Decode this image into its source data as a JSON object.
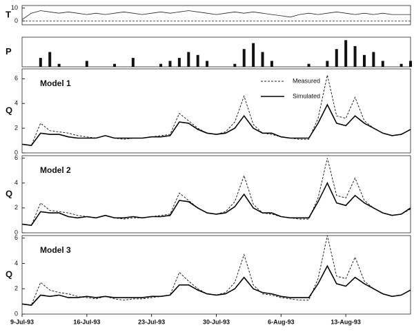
{
  "chart_data": [
    {
      "type": "line",
      "ylabel": "T",
      "x": [
        "1993-07-09",
        "1993-07-10",
        "1993-07-11",
        "1993-07-12",
        "1993-07-13",
        "1993-07-14",
        "1993-07-15",
        "1993-07-16",
        "1993-07-17",
        "1993-07-18",
        "1993-07-19",
        "1993-07-20",
        "1993-07-21",
        "1993-07-22",
        "1993-07-23",
        "1993-07-24",
        "1993-07-25",
        "1993-07-26",
        "1993-07-27",
        "1993-07-28",
        "1993-07-29",
        "1993-07-30",
        "1993-07-31",
        "1993-08-01",
        "1993-08-02",
        "1993-08-03",
        "1993-08-04",
        "1993-08-05",
        "1993-08-06",
        "1993-08-07",
        "1993-08-08",
        "1993-08-09",
        "1993-08-10",
        "1993-08-11",
        "1993-08-12",
        "1993-08-13",
        "1993-08-14",
        "1993-08-15",
        "1993-08-16",
        "1993-08-17",
        "1993-08-18",
        "1993-08-19",
        "1993-08-20"
      ],
      "values": [
        1,
        6,
        8,
        7,
        6,
        7,
        6,
        5,
        6,
        5,
        6,
        7,
        6,
        5,
        6,
        7,
        6,
        7,
        8,
        7,
        6,
        5,
        6,
        7,
        6,
        7,
        6,
        5,
        4,
        3,
        5,
        6,
        5,
        6,
        7,
        6,
        5,
        6,
        5,
        6,
        5,
        5,
        5
      ],
      "color": "#222",
      "xlim": [
        "1993-07-09",
        "1993-08-20"
      ],
      "ylim": [
        -3,
        12
      ],
      "yticks": [
        0,
        10
      ]
    },
    {
      "type": "bar",
      "ylabel": "P",
      "x": [
        "1993-07-09",
        "1993-07-10",
        "1993-07-11",
        "1993-07-12",
        "1993-07-13",
        "1993-07-14",
        "1993-07-15",
        "1993-07-16",
        "1993-07-17",
        "1993-07-18",
        "1993-07-19",
        "1993-07-20",
        "1993-07-21",
        "1993-07-22",
        "1993-07-23",
        "1993-07-24",
        "1993-07-25",
        "1993-07-26",
        "1993-07-27",
        "1993-07-28",
        "1993-07-29",
        "1993-07-30",
        "1993-07-31",
        "1993-08-01",
        "1993-08-02",
        "1993-08-03",
        "1993-08-04",
        "1993-08-05",
        "1993-08-06",
        "1993-08-07",
        "1993-08-08",
        "1993-08-09",
        "1993-08-10",
        "1993-08-11",
        "1993-08-12",
        "1993-08-13",
        "1993-08-14",
        "1993-08-15",
        "1993-08-16",
        "1993-08-17",
        "1993-08-18",
        "1993-08-19",
        "1993-08-20"
      ],
      "values": [
        0,
        0,
        3,
        5,
        1,
        0,
        0,
        2,
        0,
        0,
        1,
        0,
        3,
        0,
        0,
        1,
        2,
        3,
        5,
        4,
        2,
        0,
        0,
        1,
        6,
        8,
        5,
        2,
        0,
        0,
        0,
        1,
        0,
        2,
        6,
        9,
        7,
        4,
        5,
        2,
        0,
        1,
        2
      ],
      "color": "#111",
      "xlim": [
        "1993-07-09",
        "1993-08-20"
      ],
      "ylim": [
        0,
        10
      ]
    },
    {
      "type": "line",
      "ylabel": "Q",
      "title": "Model 1",
      "x": [
        "1993-07-09",
        "1993-07-10",
        "1993-07-11",
        "1993-07-12",
        "1993-07-13",
        "1993-07-14",
        "1993-07-15",
        "1993-07-16",
        "1993-07-17",
        "1993-07-18",
        "1993-07-19",
        "1993-07-20",
        "1993-07-21",
        "1993-07-22",
        "1993-07-23",
        "1993-07-24",
        "1993-07-25",
        "1993-07-26",
        "1993-07-27",
        "1993-07-28",
        "1993-07-29",
        "1993-07-30",
        "1993-07-31",
        "1993-08-01",
        "1993-08-02",
        "1993-08-03",
        "1993-08-04",
        "1993-08-05",
        "1993-08-06",
        "1993-08-07",
        "1993-08-08",
        "1993-08-09",
        "1993-08-10",
        "1993-08-11",
        "1993-08-12",
        "1993-08-13",
        "1993-08-14",
        "1993-08-15",
        "1993-08-16",
        "1993-08-17",
        "1993-08-18",
        "1993-08-19",
        "1993-08-20"
      ],
      "series": [
        {
          "name": "Measured",
          "color": "#222",
          "dashed": true,
          "values": [
            0.7,
            0.6,
            2.4,
            1.8,
            1.7,
            1.6,
            1.4,
            1.3,
            1.2,
            1.4,
            1.2,
            1.1,
            1.2,
            1.2,
            1.3,
            1.4,
            1.5,
            3.2,
            2.6,
            2.0,
            1.6,
            1.5,
            1.7,
            2.5,
            4.6,
            2.3,
            1.6,
            1.5,
            1.3,
            1.2,
            1.1,
            1.1,
            2.8,
            6.3,
            3.0,
            2.8,
            4.5,
            2.6,
            2.0,
            1.6,
            1.4,
            1.5,
            1.9
          ]
        },
        {
          "name": "Simulated",
          "color": "#000",
          "dashed": false,
          "values": [
            0.7,
            0.6,
            1.6,
            1.5,
            1.5,
            1.3,
            1.2,
            1.2,
            1.2,
            1.4,
            1.2,
            1.2,
            1.2,
            1.2,
            1.3,
            1.3,
            1.4,
            2.5,
            2.4,
            1.9,
            1.6,
            1.5,
            1.6,
            2.0,
            3.0,
            2.0,
            1.6,
            1.6,
            1.3,
            1.2,
            1.2,
            1.2,
            2.4,
            3.9,
            2.4,
            2.2,
            3.0,
            2.4,
            2.0,
            1.6,
            1.4,
            1.5,
            1.9
          ]
        }
      ],
      "xlim": [
        "1993-07-09",
        "1993-08-20"
      ],
      "ylim": [
        0,
        6.8
      ],
      "yticks": [
        0,
        2,
        4,
        6
      ]
    },
    {
      "type": "line",
      "ylabel": "Q",
      "title": "Model 2",
      "x": [
        "1993-07-09",
        "1993-07-10",
        "1993-07-11",
        "1993-07-12",
        "1993-07-13",
        "1993-07-14",
        "1993-07-15",
        "1993-07-16",
        "1993-07-17",
        "1993-07-18",
        "1993-07-19",
        "1993-07-20",
        "1993-07-21",
        "1993-07-22",
        "1993-07-23",
        "1993-07-24",
        "1993-07-25",
        "1993-07-26",
        "1993-07-27",
        "1993-07-28",
        "1993-07-29",
        "1993-07-30",
        "1993-07-31",
        "1993-08-01",
        "1993-08-02",
        "1993-08-03",
        "1993-08-04",
        "1993-08-05",
        "1993-08-06",
        "1993-08-07",
        "1993-08-08",
        "1993-08-09",
        "1993-08-10",
        "1993-08-11",
        "1993-08-12",
        "1993-08-13",
        "1993-08-14",
        "1993-08-15",
        "1993-08-16",
        "1993-08-17",
        "1993-08-18",
        "1993-08-19",
        "1993-08-20"
      ],
      "series": [
        {
          "color": "#222",
          "dashed": true,
          "values": [
            0.7,
            0.6,
            2.4,
            1.8,
            1.7,
            1.6,
            1.4,
            1.3,
            1.2,
            1.4,
            1.2,
            1.1,
            1.2,
            1.2,
            1.3,
            1.4,
            1.5,
            3.2,
            2.6,
            2.0,
            1.6,
            1.5,
            1.7,
            2.5,
            4.6,
            2.3,
            1.6,
            1.5,
            1.3,
            1.2,
            1.1,
            1.1,
            2.8,
            6.0,
            3.0,
            2.8,
            4.4,
            2.6,
            2.0,
            1.6,
            1.4,
            1.5,
            1.9
          ]
        },
        {
          "color": "#000",
          "dashed": false,
          "values": [
            0.7,
            0.6,
            1.7,
            1.6,
            1.6,
            1.3,
            1.2,
            1.3,
            1.2,
            1.4,
            1.2,
            1.2,
            1.3,
            1.2,
            1.3,
            1.3,
            1.4,
            2.6,
            2.5,
            2.0,
            1.6,
            1.5,
            1.6,
            2.1,
            3.1,
            2.0,
            1.6,
            1.6,
            1.3,
            1.2,
            1.2,
            1.2,
            2.5,
            4.0,
            2.4,
            2.2,
            3.0,
            2.4,
            2.0,
            1.6,
            1.4,
            1.5,
            2.0
          ]
        }
      ],
      "xlim": [
        "1993-07-09",
        "1993-08-20"
      ],
      "ylim": [
        0,
        6.2
      ],
      "yticks": [
        0,
        2,
        4,
        6
      ]
    },
    {
      "type": "line",
      "ylabel": "Q",
      "title": "Model 3",
      "x": [
        "1993-07-09",
        "1993-07-10",
        "1993-07-11",
        "1993-07-12",
        "1993-07-13",
        "1993-07-14",
        "1993-07-15",
        "1993-07-16",
        "1993-07-17",
        "1993-07-18",
        "1993-07-19",
        "1993-07-20",
        "1993-07-21",
        "1993-07-22",
        "1993-07-23",
        "1993-07-24",
        "1993-07-25",
        "1993-07-26",
        "1993-07-27",
        "1993-07-28",
        "1993-07-29",
        "1993-07-30",
        "1993-07-31",
        "1993-08-01",
        "1993-08-02",
        "1993-08-03",
        "1993-08-04",
        "1993-08-05",
        "1993-08-06",
        "1993-08-07",
        "1993-08-08",
        "1993-08-09",
        "1993-08-10",
        "1993-08-11",
        "1993-08-12",
        "1993-08-13",
        "1993-08-14",
        "1993-08-15",
        "1993-08-16",
        "1993-08-17",
        "1993-08-18",
        "1993-08-19",
        "1993-08-20"
      ],
      "series": [
        {
          "color": "#222",
          "dashed": true,
          "values": [
            0.8,
            0.7,
            2.5,
            1.9,
            1.7,
            1.6,
            1.4,
            1.3,
            1.2,
            1.4,
            1.2,
            1.1,
            1.2,
            1.2,
            1.3,
            1.4,
            1.5,
            3.3,
            2.6,
            2.0,
            1.6,
            1.5,
            1.7,
            2.5,
            4.7,
            2.3,
            1.6,
            1.5,
            1.3,
            1.2,
            1.1,
            1.1,
            2.8,
            6.2,
            3.0,
            2.8,
            4.5,
            2.6,
            2.0,
            1.6,
            1.4,
            1.5,
            1.9
          ]
        },
        {
          "color": "#000",
          "dashed": false,
          "values": [
            0.8,
            0.7,
            1.5,
            1.4,
            1.5,
            1.3,
            1.3,
            1.4,
            1.3,
            1.4,
            1.3,
            1.3,
            1.3,
            1.3,
            1.4,
            1.4,
            1.5,
            2.3,
            2.3,
            1.9,
            1.6,
            1.5,
            1.6,
            2.0,
            2.9,
            2.0,
            1.7,
            1.6,
            1.4,
            1.3,
            1.3,
            1.3,
            2.4,
            3.8,
            2.4,
            2.2,
            2.9,
            2.4,
            2.0,
            1.6,
            1.4,
            1.5,
            1.9
          ]
        }
      ],
      "xlim": [
        "1993-07-09",
        "1993-08-20"
      ],
      "ylim": [
        0,
        6.2
      ],
      "yticks": [
        0,
        2,
        4,
        6
      ],
      "xticks": [
        {
          "value": "1993-07-09",
          "label": "9-Jul-93"
        },
        {
          "value": "1993-07-16",
          "label": "16-Jul-93"
        },
        {
          "value": "1993-07-23",
          "label": "23-Jul-93"
        },
        {
          "value": "1993-07-30",
          "label": "30-Jul-93"
        },
        {
          "value": "1993-08-06",
          "label": "6-Aug-93"
        },
        {
          "value": "1993-08-13",
          "label": "13-Aug-93"
        }
      ]
    }
  ]
}
